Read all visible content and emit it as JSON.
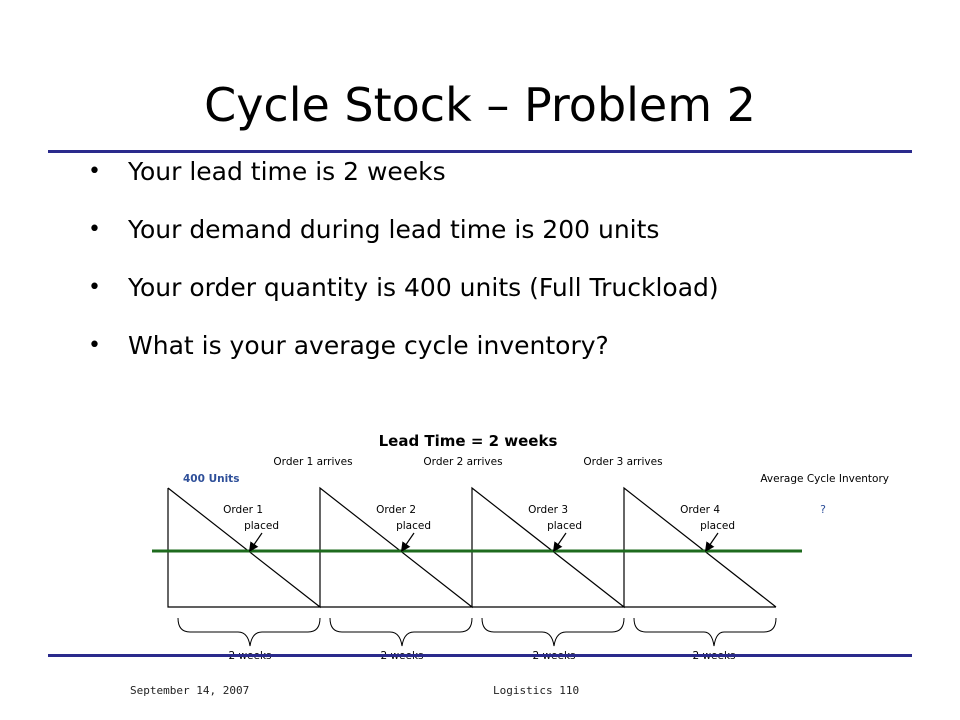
{
  "slide": {
    "title": "Cycle Stock – Problem 2",
    "bullets": [
      "Your lead time is 2 weeks",
      "Your demand during lead time is 200 units",
      "Your order quantity is 400 units (Full Truckload)",
      "What is your average cycle inventory?"
    ]
  },
  "diagram": {
    "heading": "Lead Time = 2 weeks",
    "arrivals": [
      "Order 1 arrives",
      "Order 2 arrives",
      "Order 3 arrives"
    ],
    "units_label": "400 Units",
    "avg_label": "Average Cycle Inventory",
    "question_mark": "?",
    "orders": [
      {
        "line1": "Order 1",
        "line2": "placed"
      },
      {
        "line1": "Order 2",
        "line2": "placed"
      },
      {
        "line1": "Order 3",
        "line2": "placed"
      },
      {
        "line1": "Order 4",
        "line2": "placed"
      }
    ],
    "periods": [
      "2 weeks",
      "2 weeks",
      "2 weeks",
      "2 weeks"
    ],
    "colors": {
      "reorder_line": "#1e6b1e",
      "units_label": "#2e4f99",
      "rule": "#2a2a8c"
    }
  },
  "footer": {
    "date": "September 14, 2007",
    "course": "Logistics 110"
  }
}
